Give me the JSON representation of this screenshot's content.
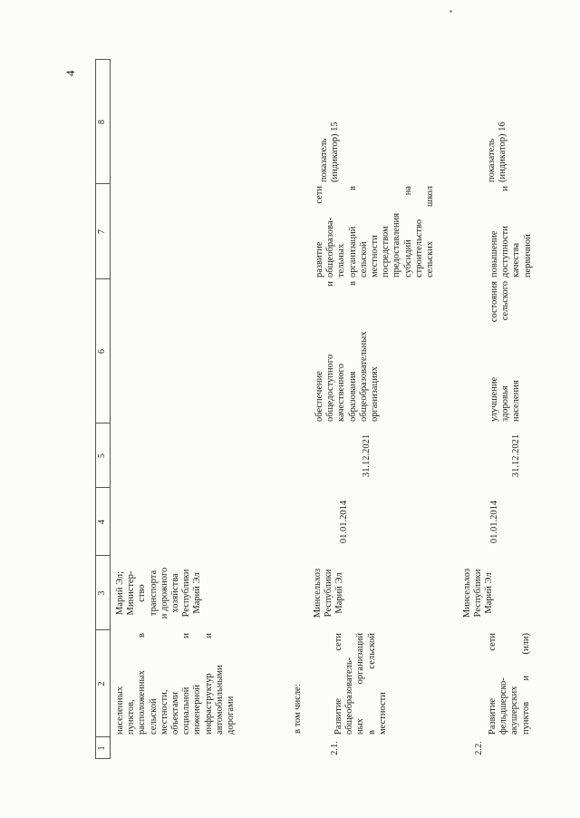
{
  "page": {
    "number": "4"
  },
  "colors": {
    "ink": "#1d1d1d",
    "line": "#555555",
    "paper": "#fcfcfb"
  },
  "table": {
    "headers": [
      "1",
      "2",
      "3",
      "4",
      "5",
      "6",
      "7",
      "8"
    ],
    "rows": [
      {
        "number": "",
        "task": [
          "населенных",
          "пунктов,",
          "расположенных в",
          "сельской",
          "местности,",
          "объектами",
          "социальной и",
          "инженерной",
          "инфраструктур и",
          "автомобильными",
          "дорогами"
        ],
        "executor": [
          "Марий Эл;",
          "Министер-",
          "ство",
          "транспорта",
          "и дорожного",
          "хозяйства",
          "Республики",
          "Марий Эл"
        ]
      },
      {
        "number": "",
        "task": [
          "в том числе:"
        ]
      },
      {
        "number": "2.1.",
        "task": [
          "Развитие сети",
          "общеобразователь-",
          "ных организаций",
          "в сельской",
          "местности"
        ],
        "executor": [
          "Минсельхоз",
          "Республики",
          "Марий Эл"
        ],
        "start": "01.01.2014",
        "end": "31.12.2021",
        "result": [
          "обеспечение",
          "общедоступного и",
          "качественного",
          "образования в",
          "общеобразовательных",
          "организациях"
        ],
        "mechanism": [
          "развитие сети",
          "общеобразова-",
          "тельных",
          "организаций в",
          "сельской",
          "местности",
          "посредством",
          "предоставления",
          "субсидий на",
          "строительство",
          "сельских школ"
        ],
        "indicator": [
          "показатель",
          "(индикатор) 15"
        ]
      },
      {
        "number": "2.2.",
        "task": [
          "Развитие сети",
          "фельдшерско-",
          "акушерских",
          "пунктов и (или)"
        ],
        "executor": [
          "Минсельхоз",
          "Республики",
          "Марий Эл"
        ],
        "start": "01.01.2014",
        "end": "31.12.2021",
        "result": [
          "улучшение состояния",
          "здоровья сельского",
          "населения"
        ],
        "mechanism": [
          "повышение",
          "доступности и",
          "качества",
          "первичной"
        ],
        "indicator": [
          "показатель",
          "(индикатор) 16"
        ]
      }
    ]
  }
}
